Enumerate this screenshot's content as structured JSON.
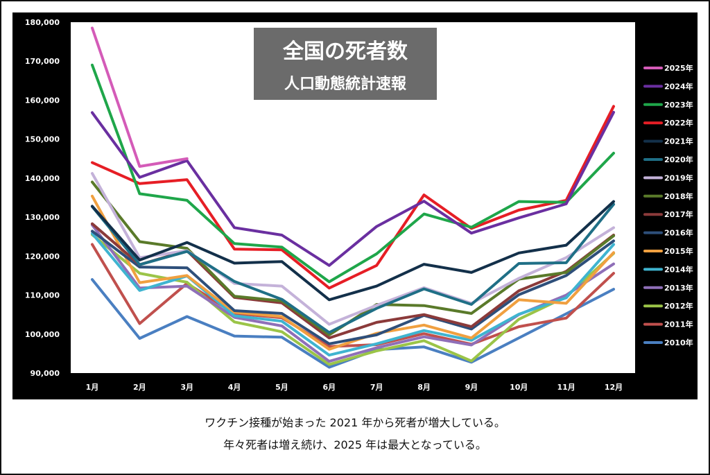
{
  "chart_data": {
    "type": "line",
    "title": "全国の死者数",
    "subtitle": "人口動態統計速報",
    "xlabel": "",
    "ylabel": "",
    "categories": [
      "1月",
      "2月",
      "3月",
      "4月",
      "5月",
      "6月",
      "7月",
      "8月",
      "9月",
      "10月",
      "11月",
      "12月"
    ],
    "ylim": [
      90000,
      180000
    ],
    "yticks": [
      "90,000",
      "100,000",
      "110,000",
      "120,000",
      "130,000",
      "140,000",
      "150,000",
      "160,000",
      "170,000",
      "180,000"
    ],
    "grid": false,
    "legend_position": "right",
    "series": [
      {
        "name": "2025年",
        "color": "#d45bb8",
        "values": [
          178500,
          143000,
          145000,
          null,
          null,
          null,
          null,
          null,
          null,
          null,
          null,
          null
        ]
      },
      {
        "name": "2024年",
        "color": "#6a2fa0",
        "values": [
          156800,
          140200,
          144500,
          127300,
          125400,
          117600,
          127600,
          134100,
          125900,
          129800,
          133400,
          156900
        ]
      },
      {
        "name": "2023年",
        "color": "#1fa64a",
        "values": [
          169000,
          136000,
          134300,
          123200,
          122300,
          113400,
          120600,
          130800,
          127400,
          134000,
          133800,
          146400
        ]
      },
      {
        "name": "2022年",
        "color": "#e61e25",
        "values": [
          144000,
          138600,
          139600,
          121800,
          121600,
          111800,
          117600,
          135700,
          127100,
          131800,
          134300,
          158400
        ]
      },
      {
        "name": "2021年",
        "color": "#13304a",
        "values": [
          132800,
          119000,
          123500,
          118200,
          118600,
          108800,
          112300,
          117900,
          115800,
          120800,
          122800,
          134000
        ]
      },
      {
        "name": "2020年",
        "color": "#1f6f86",
        "values": [
          132700,
          117800,
          121200,
          113500,
          108900,
          100400,
          106600,
          111600,
          107600,
          118100,
          118300,
          133300
        ]
      },
      {
        "name": "2019年",
        "color": "#c4b2d9",
        "values": [
          141200,
          119600,
          121400,
          113000,
          112300,
          102500,
          107400,
          111900,
          107900,
          114300,
          119600,
          127300
        ]
      },
      {
        "name": "2018年",
        "color": "#5a7a2a",
        "values": [
          139000,
          123700,
          122000,
          109700,
          108500,
          99800,
          107600,
          107300,
          105300,
          114100,
          115800,
          125200
        ]
      },
      {
        "name": "2017年",
        "color": "#8b3a3a",
        "values": [
          128300,
          117800,
          121400,
          109400,
          108000,
          99000,
          103000,
          105000,
          101900,
          111100,
          116100,
          125400
        ]
      },
      {
        "name": "2016年",
        "color": "#2e4f7a",
        "values": [
          126400,
          117200,
          117000,
          106000,
          105300,
          97500,
          99800,
          104800,
          101300,
          110100,
          115000,
          123900
        ]
      },
      {
        "name": "2015年",
        "color": "#f0a040",
        "values": [
          135400,
          113200,
          115000,
          105600,
          104500,
          96100,
          100200,
          102300,
          99000,
          108800,
          107900,
          120900
        ]
      },
      {
        "name": "2014年",
        "color": "#3fb4d0",
        "values": [
          125800,
          111200,
          114900,
          104700,
          103300,
          94600,
          97500,
          100900,
          98400,
          105100,
          109300,
          123000
        ]
      },
      {
        "name": "2013年",
        "color": "#8f6fb8",
        "values": [
          128000,
          111800,
          112300,
          104300,
          102100,
          93000,
          96500,
          99300,
          97200,
          105000,
          110000,
          118000
        ]
      },
      {
        "name": "2012年",
        "color": "#9bc448",
        "values": [
          125500,
          115600,
          113300,
          103100,
          100600,
          92200,
          95700,
          98300,
          93100,
          103800,
          109600,
          120700
        ]
      },
      {
        "name": "2011年",
        "color": "#c0504d",
        "values": [
          123000,
          102700,
          113000,
          105300,
          104200,
          96800,
          97300,
          100100,
          97400,
          101900,
          104100,
          115600
        ]
      },
      {
        "name": "2010年",
        "color": "#4a7fc1",
        "values": [
          114000,
          98900,
          104500,
          99500,
          99200,
          91500,
          96000,
          96700,
          92800,
          99000,
          105200,
          111500
        ]
      }
    ]
  },
  "caption": {
    "line1": "ワクチン接種が始まった 2021 年から死者が増大している。",
    "line2": "年々死者は増え続け、2025 年は最大となっている。"
  }
}
